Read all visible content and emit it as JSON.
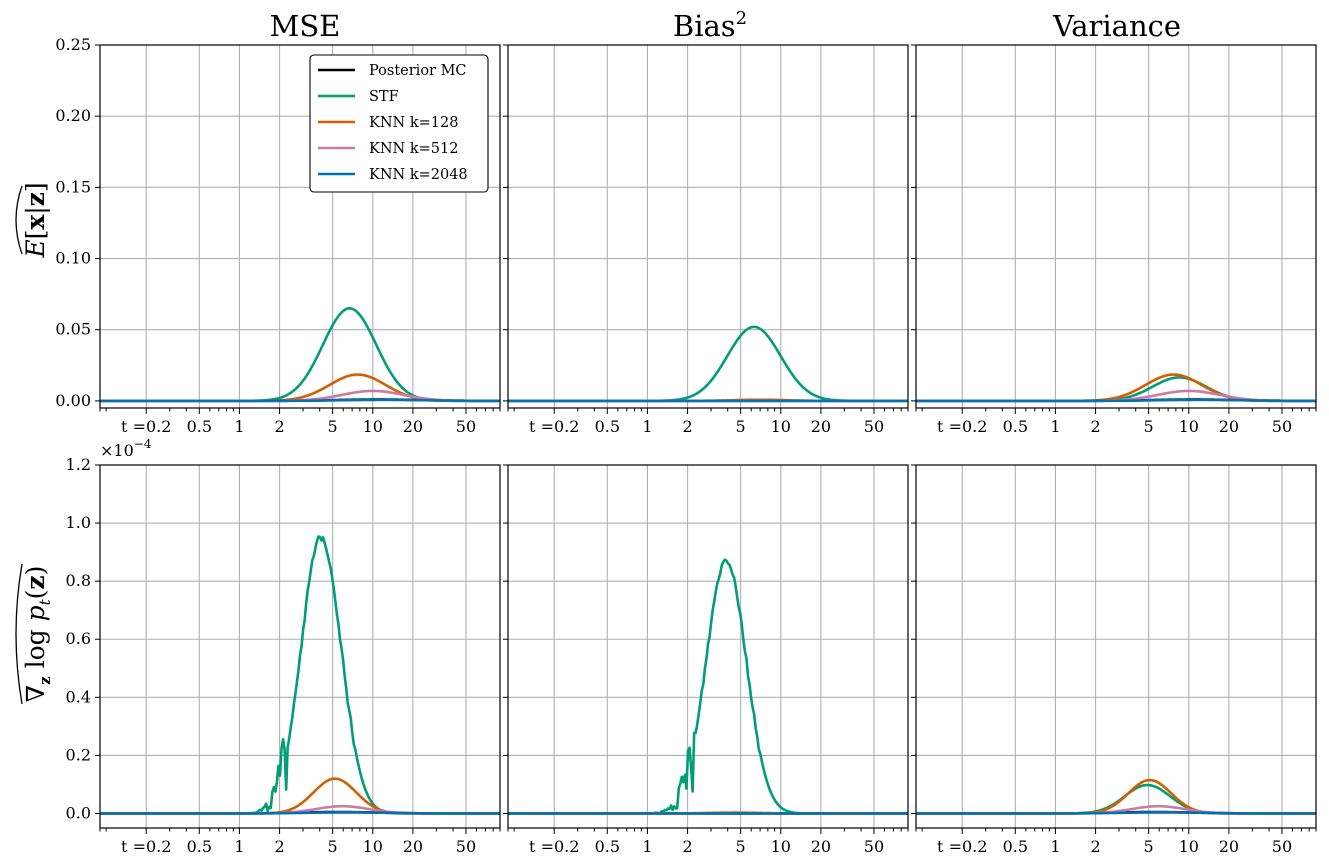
{
  "chart_data": {
    "type": "line",
    "x_scale": "log",
    "x_ticks": [
      0.2,
      0.5,
      1,
      2,
      5,
      10,
      20,
      50
    ],
    "x_tick_labels": [
      "t =0.2",
      "0.5",
      "1",
      "2",
      "5",
      "10",
      "20",
      "50"
    ],
    "xlim": [
      0.09,
      90
    ],
    "grid": true,
    "legend": {
      "location": "upper-right of first panel",
      "entries": [
        "Posterior MC",
        "STF",
        "KNN k=128",
        "KNN k=512",
        "KNN k=2048"
      ]
    },
    "series_colors": {
      "Posterior MC": "#000000",
      "STF": "#009e73",
      "KNN k=128": "#d55e00",
      "KNN k=512": "#cc79a7",
      "KNN k=2048": "#0072b2"
    },
    "column_titles": [
      "MSE",
      "Bias",
      "Variance"
    ],
    "bias_superscript": "2",
    "rows": [
      {
        "ylabel": "E[x|z] (hat)",
        "ylim": [
          -0.005,
          0.25
        ],
        "y_ticks": [
          0.0,
          0.05,
          0.1,
          0.15,
          0.2,
          0.25
        ],
        "y_tick_labels": [
          "0.00",
          "0.05",
          "0.10",
          "0.15",
          "0.20",
          "0.25"
        ],
        "panels": [
          {
            "title": "MSE",
            "series": [
              {
                "name": "Posterior MC",
                "peaks": [
                  {
                    "center": 11,
                    "height": 0.001,
                    "width": 0.3
                  }
                ]
              },
              {
                "name": "STF",
                "peaks": [
                  {
                    "center": 6.7,
                    "height": 0.065,
                    "width": 0.2
                  }
                ]
              },
              {
                "name": "KNN k=128",
                "peaks": [
                  {
                    "center": 7.7,
                    "height": 0.0185,
                    "width": 0.21
                  }
                ]
              },
              {
                "name": "KNN k=512",
                "peaks": [
                  {
                    "center": 10,
                    "height": 0.007,
                    "width": 0.23
                  }
                ]
              },
              {
                "name": "KNN k=2048",
                "peaks": [
                  {
                    "center": 12,
                    "height": 0.0008,
                    "width": 0.3
                  }
                ]
              }
            ]
          },
          {
            "title": "Bias2",
            "series": [
              {
                "name": "Posterior MC",
                "peaks": []
              },
              {
                "name": "STF",
                "peaks": [
                  {
                    "center": 6.3,
                    "height": 0.052,
                    "width": 0.2
                  }
                ]
              },
              {
                "name": "KNN k=128",
                "peaks": [
                  {
                    "center": 7,
                    "height": 0.0008,
                    "width": 0.2
                  }
                ]
              },
              {
                "name": "KNN k=512",
                "peaks": []
              },
              {
                "name": "KNN k=2048",
                "peaks": []
              }
            ]
          },
          {
            "title": "Variance",
            "series": [
              {
                "name": "Posterior MC",
                "peaks": [
                  {
                    "center": 11,
                    "height": 0.001,
                    "width": 0.3
                  }
                ]
              },
              {
                "name": "STF",
                "peaks": [
                  {
                    "center": 8.5,
                    "height": 0.0165,
                    "width": 0.2
                  }
                ]
              },
              {
                "name": "KNN k=128",
                "peaks": [
                  {
                    "center": 7.7,
                    "height": 0.0185,
                    "width": 0.21
                  }
                ]
              },
              {
                "name": "KNN k=512",
                "peaks": [
                  {
                    "center": 10,
                    "height": 0.007,
                    "width": 0.23
                  }
                ]
              },
              {
                "name": "KNN k=2048",
                "peaks": [
                  {
                    "center": 12,
                    "height": 0.0008,
                    "width": 0.3
                  }
                ]
              }
            ]
          }
        ]
      },
      {
        "ylabel": "grad_z log p_t(z) (hat)",
        "ylim": [
          -0.05,
          1.2
        ],
        "y_multiplier": "×10",
        "y_multiplier_exponent": "−4",
        "y_ticks": [
          0.0,
          0.2,
          0.4,
          0.6,
          0.8,
          1.0,
          1.2
        ],
        "y_tick_labels": [
          "0.0",
          "0.2",
          "0.4",
          "0.6",
          "0.8",
          "1.0",
          "1.2"
        ],
        "panels": [
          {
            "title": "MSE",
            "series": [
              {
                "name": "Posterior MC",
                "peaks": [
                  {
                    "center": 5.5,
                    "height": 0.005,
                    "width": 0.3
                  }
                ]
              },
              {
                "name": "STF",
                "peaks": [
                  {
                    "center": 4.1,
                    "height": 0.95,
                    "width": 0.15
                  }
                ],
                "noise_below": 2.3
              },
              {
                "name": "KNN k=128",
                "peaks": [
                  {
                    "center": 5.2,
                    "height": 0.12,
                    "width": 0.16
                  }
                ]
              },
              {
                "name": "KNN k=512",
                "peaks": [
                  {
                    "center": 5.9,
                    "height": 0.025,
                    "width": 0.2
                  }
                ]
              },
              {
                "name": "KNN k=2048",
                "peaks": [
                  {
                    "center": 6.5,
                    "height": 0.004,
                    "width": 0.3
                  }
                ]
              }
            ]
          },
          {
            "title": "Bias2",
            "series": [
              {
                "name": "Posterior MC",
                "peaks": []
              },
              {
                "name": "STF",
                "peaks": [
                  {
                    "center": 3.9,
                    "height": 0.875,
                    "width": 0.15
                  }
                ],
                "noise_below": 2.3
              },
              {
                "name": "KNN k=128",
                "peaks": [
                  {
                    "center": 4.5,
                    "height": 0.003,
                    "width": 0.2
                  }
                ]
              },
              {
                "name": "KNN k=512",
                "peaks": []
              },
              {
                "name": "KNN k=2048",
                "peaks": []
              }
            ]
          },
          {
            "title": "Variance",
            "series": [
              {
                "name": "Posterior MC",
                "peaks": [
                  {
                    "center": 5.5,
                    "height": 0.005,
                    "width": 0.3
                  }
                ]
              },
              {
                "name": "STF",
                "peaks": [
                  {
                    "center": 4.9,
                    "height": 0.098,
                    "width": 0.17
                  }
                ]
              },
              {
                "name": "KNN k=128",
                "peaks": [
                  {
                    "center": 5.1,
                    "height": 0.115,
                    "width": 0.16
                  }
                ]
              },
              {
                "name": "KNN k=512",
                "peaks": [
                  {
                    "center": 5.9,
                    "height": 0.025,
                    "width": 0.2
                  }
                ]
              },
              {
                "name": "KNN k=2048",
                "peaks": [
                  {
                    "center": 6.5,
                    "height": 0.004,
                    "width": 0.3
                  }
                ]
              }
            ]
          }
        ]
      }
    ]
  }
}
